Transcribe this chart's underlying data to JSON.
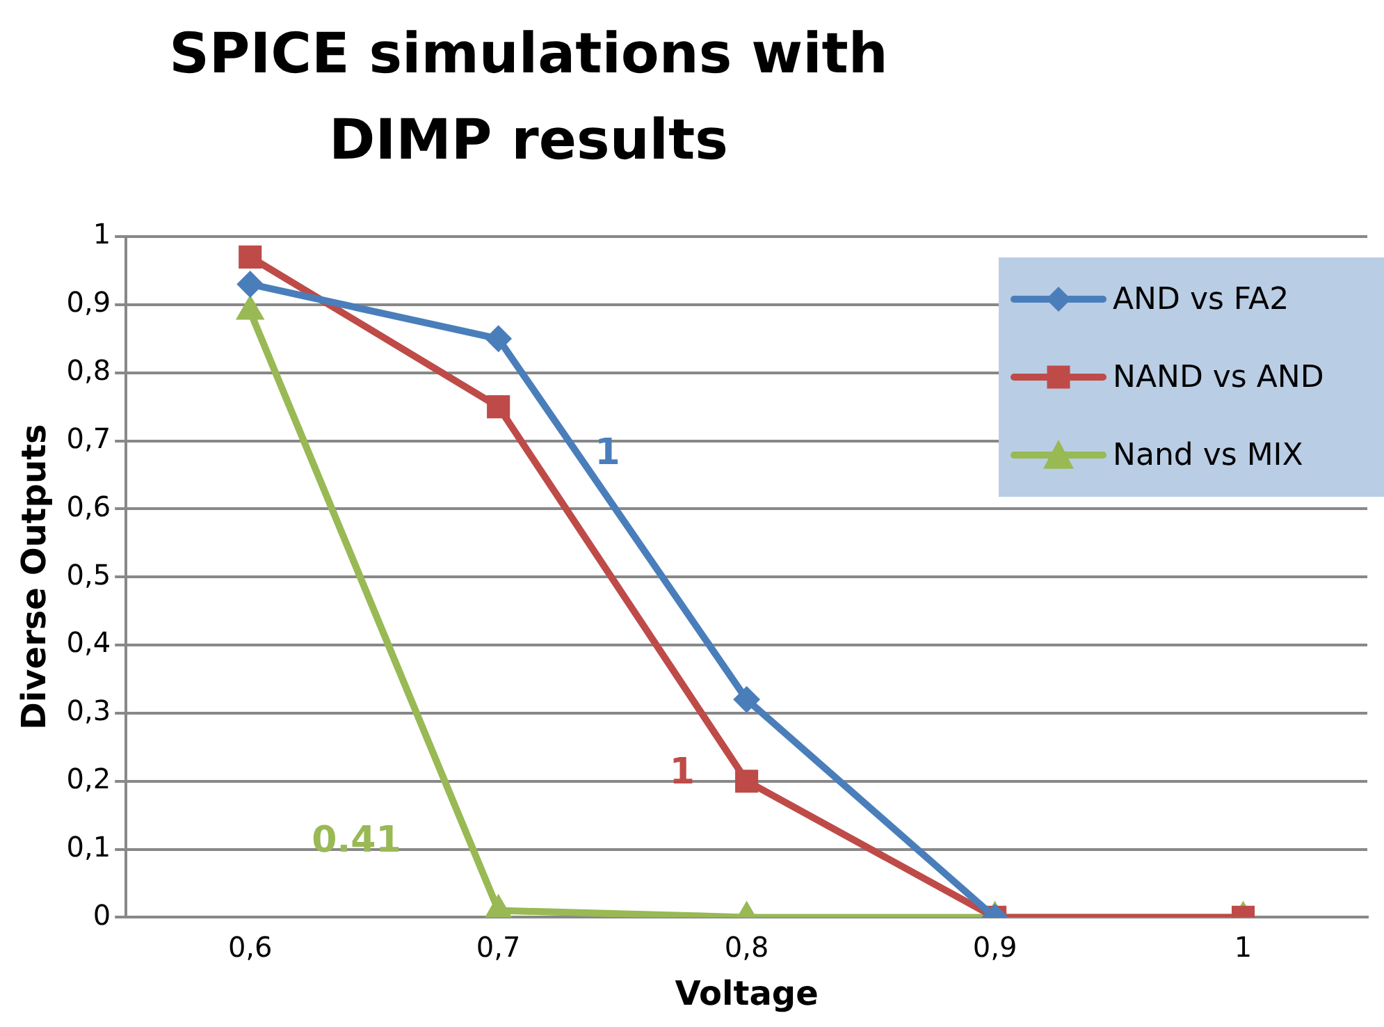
{
  "chart_data": {
    "type": "line",
    "title": "SPICE simulations with DIMP results",
    "xlabel": "Voltage",
    "ylabel": "Diverse Outputs",
    "categories": [
      "0,6",
      "0,7",
      "0,8",
      "0,9",
      "1"
    ],
    "series": [
      {
        "name": "AND vs FA2",
        "color": "#4a7ebb",
        "marker": "diamond",
        "values": [
          0.93,
          0.85,
          0.32,
          0,
          null
        ]
      },
      {
        "name": "NAND vs AND",
        "color": "#be4b48",
        "marker": "square",
        "values": [
          0.97,
          0.75,
          0.2,
          0,
          0
        ]
      },
      {
        "name": "Nand vs MIX",
        "color": "#98b954",
        "marker": "triangle",
        "values": [
          0.89,
          0.01,
          0,
          0,
          0
        ]
      }
    ],
    "ylim": [
      0,
      1
    ],
    "yticks": [
      {
        "value": 0,
        "label": "0"
      },
      {
        "value": 0.1,
        "label": "0,1"
      },
      {
        "value": 0.2,
        "label": "0,2"
      },
      {
        "value": 0.3,
        "label": "0,3"
      },
      {
        "value": 0.4,
        "label": "0,4"
      },
      {
        "value": 0.5,
        "label": "0,5"
      },
      {
        "value": 0.6,
        "label": "0,6"
      },
      {
        "value": 0.7,
        "label": "0,7"
      },
      {
        "value": 0.8,
        "label": "0,8"
      },
      {
        "value": 0.9,
        "label": "0,9"
      },
      {
        "value": 1,
        "label": "1"
      }
    ],
    "grid": "y",
    "legend": "top right",
    "line_style": "solid",
    "annotations": [
      "1",
      "1",
      "0.41"
    ]
  }
}
